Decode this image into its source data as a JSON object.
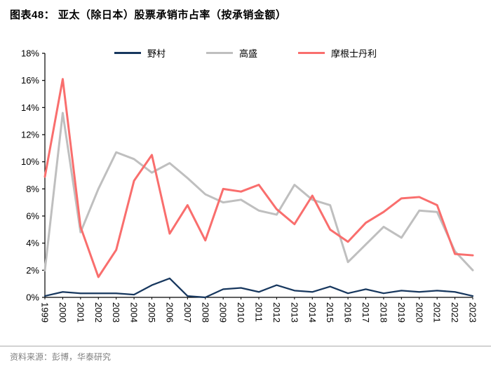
{
  "header": {
    "title": "图表48：  亚太（除日本）股票承销市占率（按承销金额）"
  },
  "footer": {
    "source": "资料来源：彭博，华泰研究"
  },
  "chart_data": {
    "type": "line",
    "title": "亚太（除日本）股票承销市占率（按承销金额）",
    "grid": false,
    "legend_position": "top",
    "ylabel": "",
    "xlabel": "",
    "ylim": [
      0,
      18
    ],
    "ytick_step": 2,
    "ytick_suffix": "%",
    "categories": [
      "1999",
      "2000",
      "2001",
      "2002",
      "2003",
      "2004",
      "2005",
      "2006",
      "2007",
      "2008",
      "2009",
      "2010",
      "2011",
      "2012",
      "2013",
      "2014",
      "2015",
      "2016",
      "2017",
      "2018",
      "2019",
      "2020",
      "2021",
      "2022",
      "2023"
    ],
    "series": [
      {
        "name": "野村",
        "color": "#17375E",
        "width": 2.25,
        "values": [
          0.1,
          0.4,
          0.3,
          0.3,
          0.3,
          0.2,
          0.9,
          1.4,
          0.1,
          0.0,
          0.6,
          0.7,
          0.4,
          0.9,
          0.5,
          0.4,
          0.8,
          0.3,
          0.6,
          0.3,
          0.5,
          0.4,
          0.5,
          0.4,
          0.1
        ]
      },
      {
        "name": "高盛",
        "color": "#BFBFBF",
        "width": 3,
        "values": [
          2.0,
          13.6,
          4.8,
          8.0,
          10.7,
          10.2,
          9.2,
          9.9,
          8.8,
          7.6,
          7.0,
          7.2,
          6.4,
          6.1,
          8.3,
          7.2,
          6.8,
          2.6,
          3.9,
          5.2,
          4.4,
          6.4,
          6.3,
          3.4,
          2.0
        ]
      },
      {
        "name": "摩根士丹利",
        "color": "#F96E6D",
        "width": 3,
        "values": [
          8.9,
          16.1,
          5.2,
          1.5,
          3.5,
          8.6,
          10.5,
          4.7,
          6.8,
          4.2,
          8.0,
          7.8,
          8.3,
          6.5,
          5.4,
          7.5,
          5.0,
          4.1,
          5.5,
          6.3,
          7.3,
          7.4,
          6.8,
          3.2,
          3.1
        ]
      }
    ]
  }
}
